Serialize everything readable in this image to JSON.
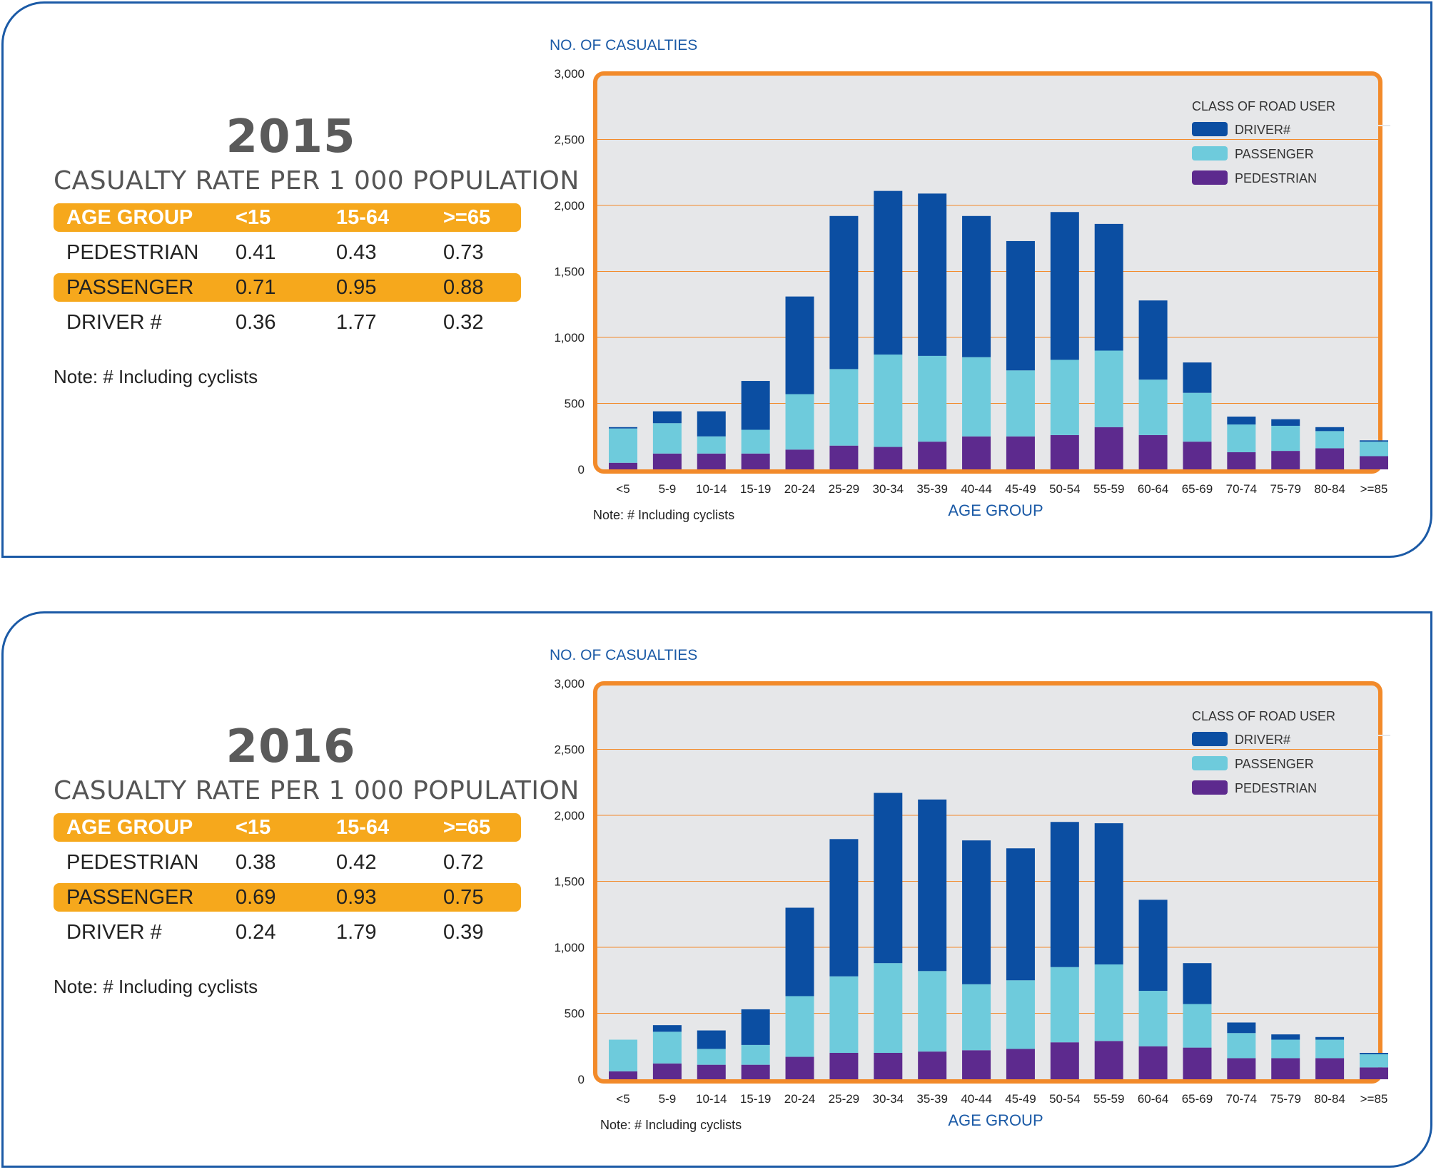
{
  "panels": [
    {
      "year": "2015",
      "rate_title": "CASUALTY RATE PER 1 000 POPULATION",
      "table": {
        "header": [
          "AGE GROUP",
          "<15",
          "15-64",
          ">=65"
        ],
        "rows": [
          [
            "PEDESTRIAN",
            "0.41",
            "0.43",
            "0.73"
          ],
          [
            "PASSENGER",
            "0.71",
            "0.95",
            "0.88"
          ],
          [
            "DRIVER #",
            "0.36",
            "1.77",
            "0.32"
          ]
        ]
      },
      "note": "Note:  #  Including cyclists",
      "chart_note": "Note:  # Including cyclists"
    },
    {
      "year": "2016",
      "rate_title": "CASUALTY RATE PER 1 000 POPULATION",
      "table": {
        "header": [
          "AGE GROUP",
          "<15",
          "15-64",
          ">=65"
        ],
        "rows": [
          [
            "PEDESTRIAN",
            "0.38",
            "0.42",
            "0.72"
          ],
          [
            "PASSENGER",
            "0.69",
            "0.93",
            "0.75"
          ],
          [
            "DRIVER #",
            "0.24",
            "1.79",
            "0.39"
          ]
        ]
      },
      "note": "Note:  #  Including cyclists",
      "chart_note": "Note:  # Including cyclists"
    }
  ],
  "colors": {
    "driver": "#0b4ea2",
    "passenger": "#6ecbdc",
    "pedestrian": "#5d2a8e",
    "frame": "#f28a2a",
    "plot_bg": "#e6e7e9",
    "header_bg": "#f6a81c",
    "axis_text": "#1b5aa6"
  },
  "chart_data": [
    {
      "type": "bar",
      "stacked": true,
      "ylabel": "NO. OF CASUALTIES",
      "xlabel": "AGE GROUP",
      "legend_title": "CLASS OF ROAD USER",
      "legend_position": "top-right",
      "grid": true,
      "ylim": [
        0,
        3000
      ],
      "yticks": [
        "0",
        "500",
        "1,000",
        "1,500",
        "2,000",
        "2,500",
        "3,000"
      ],
      "categories": [
        "<5",
        "5-9",
        "10-14",
        "15-19",
        "20-24",
        "25-29",
        "30-34",
        "35-39",
        "40-44",
        "45-49",
        "50-54",
        "55-59",
        "60-64",
        "65-69",
        "70-74",
        "75-79",
        "80-84",
        ">=85"
      ],
      "series": [
        {
          "name": "PEDESTRIAN",
          "values": [
            50,
            120,
            120,
            120,
            150,
            180,
            170,
            210,
            250,
            250,
            260,
            320,
            260,
            210,
            130,
            140,
            160,
            100
          ]
        },
        {
          "name": "PASSENGER",
          "values": [
            260,
            230,
            130,
            180,
            420,
            580,
            700,
            650,
            600,
            500,
            570,
            580,
            420,
            370,
            210,
            190,
            130,
            110
          ]
        },
        {
          "name": "DRIVER#",
          "values": [
            10,
            90,
            190,
            370,
            740,
            1160,
            1240,
            1230,
            1070,
            980,
            1120,
            960,
            600,
            230,
            60,
            50,
            30,
            10
          ]
        }
      ]
    },
    {
      "type": "bar",
      "stacked": true,
      "ylabel": "NO. OF CASUALTIES",
      "xlabel": "AGE GROUP",
      "legend_title": "CLASS OF ROAD USER",
      "legend_position": "top-right",
      "grid": true,
      "ylim": [
        0,
        3000
      ],
      "yticks": [
        "0",
        "500",
        "1,000",
        "1,500",
        "2,000",
        "2,500",
        "3,000"
      ],
      "categories": [
        "<5",
        "5-9",
        "10-14",
        "15-19",
        "20-24",
        "25-29",
        "30-34",
        "35-39",
        "40-44",
        "45-49",
        "50-54",
        "55-59",
        "60-64",
        "65-69",
        "70-74",
        "75-79",
        "80-84",
        ">=85"
      ],
      "series": [
        {
          "name": "PEDESTRIAN",
          "values": [
            60,
            120,
            110,
            110,
            170,
            200,
            200,
            210,
            220,
            230,
            280,
            290,
            250,
            240,
            160,
            160,
            160,
            90
          ]
        },
        {
          "name": "PASSENGER",
          "values": [
            240,
            240,
            120,
            150,
            460,
            580,
            680,
            610,
            500,
            520,
            570,
            580,
            420,
            330,
            190,
            140,
            140,
            100
          ]
        },
        {
          "name": "DRIVER#",
          "values": [
            0,
            50,
            140,
            270,
            670,
            1040,
            1290,
            1300,
            1090,
            1000,
            1100,
            1070,
            690,
            310,
            80,
            40,
            20,
            10
          ]
        }
      ]
    }
  ]
}
